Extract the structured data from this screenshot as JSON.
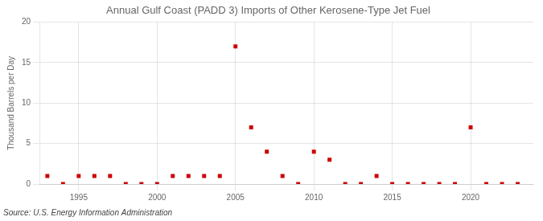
{
  "chart_data": {
    "type": "scatter",
    "title": "Annual Gulf Coast (PADD 3) Imports of Other Kerosene-Type Jet Fuel",
    "ylabel": "Thousand Barrels per Day",
    "annotation": "Source: U.S. Energy Information Administration",
    "x": [
      1993,
      1994,
      1995,
      1996,
      1997,
      1998,
      1999,
      2000,
      2001,
      2002,
      2003,
      2004,
      2005,
      2006,
      2007,
      2008,
      2009,
      2010,
      2011,
      2012,
      2013,
      2014,
      2015,
      2016,
      2017,
      2018,
      2019,
      2020,
      2021,
      2022,
      2023
    ],
    "values": [
      1,
      0,
      1,
      1,
      1,
      0,
      0,
      0,
      1,
      1,
      1,
      1,
      17,
      7,
      4,
      1,
      0,
      4,
      3,
      0,
      0,
      1,
      0,
      0,
      0,
      0,
      0,
      7,
      0,
      0,
      0
    ],
    "color": "#cc0000",
    "marker": "square",
    "xlim": [
      1992.5,
      2024
    ],
    "xticks": [
      1995,
      2000,
      2005,
      2010,
      2015,
      2020
    ],
    "ylim": [
      0,
      20
    ],
    "yticks": [
      0,
      5,
      10,
      15,
      20
    ],
    "grid": true
  }
}
